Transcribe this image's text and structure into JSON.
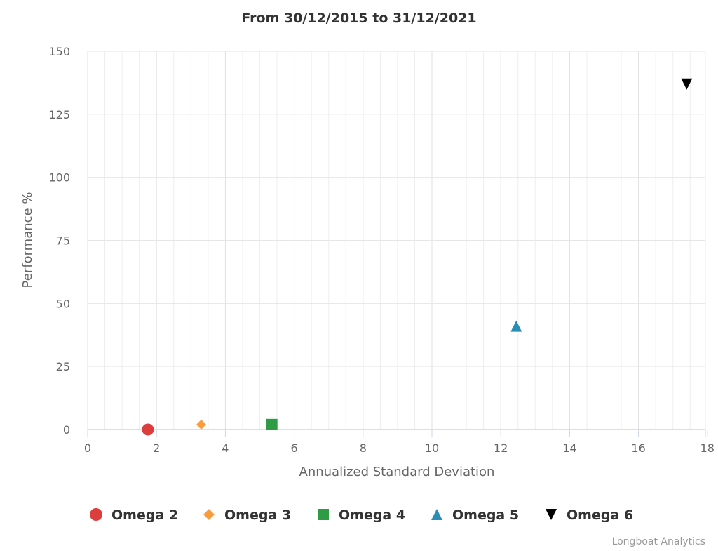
{
  "chart_data": {
    "type": "scatter",
    "title": "From 30/12/2015 to 31/12/2021",
    "xlabel": "Annualized Standard Deviation",
    "ylabel": "Performance %",
    "xlim": [
      0,
      18
    ],
    "ylim": [
      0,
      150
    ],
    "x_ticks": [
      "0",
      "2",
      "4",
      "6",
      "8",
      "10",
      "12",
      "14",
      "16",
      "18"
    ],
    "y_ticks": [
      "0",
      "25",
      "50",
      "75",
      "100",
      "125",
      "150"
    ],
    "grid": true,
    "legend_position": "bottom",
    "series": [
      {
        "name": "Omega 2",
        "marker": "circle",
        "color": "#dc3d3d",
        "points": [
          {
            "x": 1.75,
            "y": 0
          }
        ]
      },
      {
        "name": "Omega 3",
        "marker": "diamond",
        "color": "#f99c3e",
        "points": [
          {
            "x": 3.3,
            "y": 2
          }
        ]
      },
      {
        "name": "Omega 4",
        "marker": "square",
        "color": "#2e9b45",
        "points": [
          {
            "x": 5.35,
            "y": 2
          }
        ]
      },
      {
        "name": "Omega 5",
        "marker": "triangle",
        "color": "#2a8db5",
        "points": [
          {
            "x": 12.45,
            "y": 41
          }
        ]
      },
      {
        "name": "Omega 6",
        "marker": "triangle-down",
        "color": "#000000",
        "points": [
          {
            "x": 17.4,
            "y": 137
          }
        ]
      }
    ]
  },
  "credits": "Longboat Analytics"
}
